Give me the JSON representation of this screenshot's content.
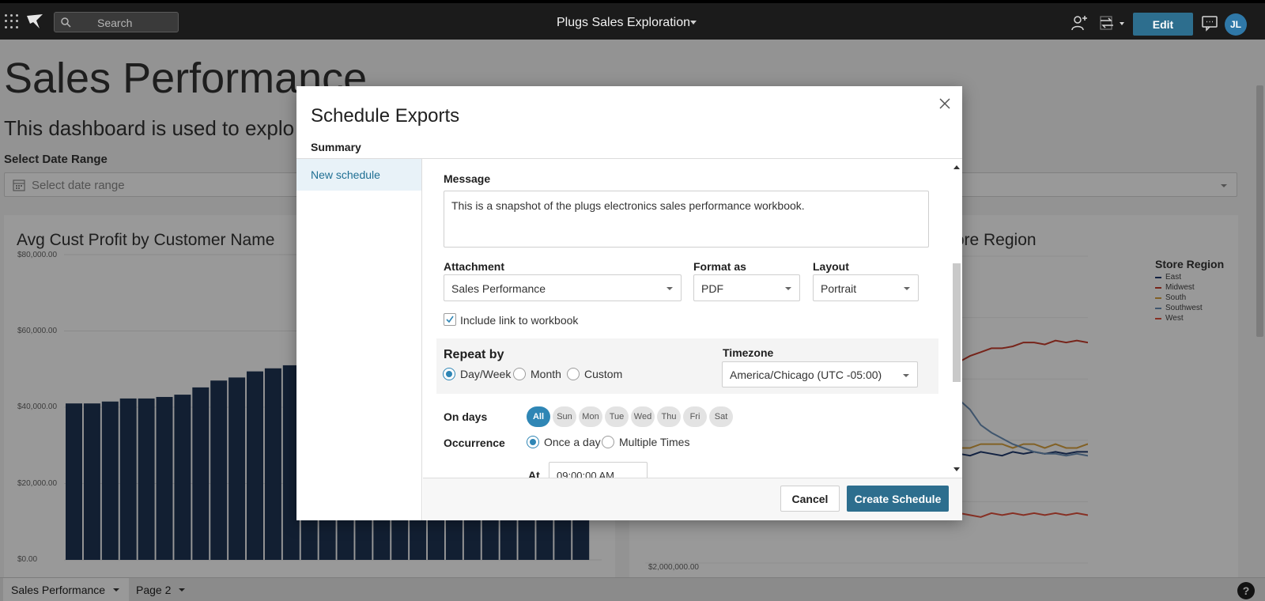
{
  "topbar": {
    "search_placeholder": "Search",
    "workbook_title": "Plugs Sales Exploration",
    "edit_label": "Edit",
    "avatar_initials": "JL"
  },
  "dashboard": {
    "title": "Sales Performance",
    "subtitle": "This dashboard is used to explo",
    "date_range_label": "Select Date Range",
    "date_range_placeholder": "Select date range",
    "left_chart": {
      "title": "Avg Cust Profit by Customer Name",
      "yticks": [
        "$80,000.00",
        "$60,000.00",
        "$40,000.00",
        "$20,000.00",
        "$0.00"
      ]
    },
    "right_chart": {
      "title": "tore Region",
      "ytick_bottom": "$2,000,000.00",
      "legend_title": "Store Region",
      "legend": [
        {
          "name": "East",
          "color": "#1f3a6e"
        },
        {
          "name": "Midwest",
          "color": "#c63c2c"
        },
        {
          "name": "South",
          "color": "#d9a23e"
        },
        {
          "name": "Southwest",
          "color": "#6b8fb8"
        },
        {
          "name": "West",
          "color": "#e2503c"
        }
      ]
    }
  },
  "chart_data": [
    {
      "type": "bar",
      "title": "Avg Cust Profit by Customer Name",
      "ylim": [
        0,
        80000
      ],
      "values": [
        41000,
        41000,
        41500,
        42300,
        42300,
        42700,
        43300,
        45200,
        47000,
        47800,
        49400,
        50200,
        51000,
        51000,
        51000,
        51000,
        51000,
        51000,
        51000,
        51000,
        51000,
        51000,
        51000,
        51000,
        51000,
        51000,
        51000,
        51000,
        51000
      ]
    },
    {
      "type": "line",
      "series": [
        {
          "name": "East",
          "values": [
            0.55,
            0.56,
            0.57,
            0.56,
            0.58,
            0.57,
            0.56,
            0.58,
            0.57,
            0.58,
            0.57,
            0.56,
            0.58,
            0.57,
            0.56,
            0.58,
            0.57,
            0.56,
            0.58,
            0.57,
            0.56,
            0.58,
            0.57,
            0.56,
            0.58,
            0.57,
            0.56,
            0.58,
            0.57,
            0.56,
            0.58,
            0.57,
            0.58,
            0.57,
            0.58,
            0.57,
            0.58,
            0.58,
            0.57,
            0.56,
            0.0
          ]
        },
        {
          "name": "Midwest",
          "values": [
            0.75,
            0.76,
            0.76,
            0.77,
            0.76,
            0.76,
            0.77,
            0.76,
            0.77,
            0.76,
            0.76,
            0.77,
            0.76,
            0.76,
            0.77,
            0.76,
            0.78,
            0.78,
            0.8,
            0.82,
            0.84,
            0.86,
            0.9,
            0.95,
            1.0,
            1.05,
            1.08,
            1.1,
            1.12,
            1.12,
            1.13,
            1.15,
            1.15,
            1.14,
            1.16,
            1.15,
            1.16,
            1.15,
            1.16,
            1.17,
            0.0
          ]
        },
        {
          "name": "South",
          "values": [
            0.75,
            0.76,
            0.76,
            0.77,
            0.76,
            0.76,
            0.77,
            0.76,
            0.77,
            0.76,
            0.76,
            0.77,
            0.76,
            0.76,
            0.77,
            0.76,
            0.68,
            0.66,
            0.64,
            0.64,
            0.62,
            0.62,
            0.6,
            0.6,
            0.62,
            0.6,
            0.6,
            0.62,
            0.62,
            0.62,
            0.6,
            0.62,
            0.62,
            0.6,
            0.62,
            0.6,
            0.6,
            0.62,
            0.6,
            0.6,
            0.0
          ]
        },
        {
          "name": "Southwest",
          "values": [
            1.55,
            1.25,
            1.18,
            1.16,
            1.16,
            1.15,
            1.16,
            1.15,
            1.16,
            1.15,
            1.15,
            1.14,
            1.14,
            1.13,
            1.13,
            1.12,
            1.12,
            1.1,
            1.1,
            1.08,
            1.06,
            1.04,
            1.0,
            0.95,
            0.9,
            0.85,
            0.8,
            0.72,
            0.68,
            0.65,
            0.62,
            0.6,
            0.58,
            0.57,
            0.57,
            0.56,
            0.57,
            0.56,
            0.56,
            0.55,
            0.0
          ]
        },
        {
          "name": "West",
          "values": [
            0.32,
            0.26,
            0.27,
            0.25,
            0.24,
            0.25,
            0.24,
            0.26,
            0.25,
            0.24,
            0.26,
            0.25,
            0.24,
            0.26,
            0.25,
            0.24,
            0.26,
            0.25,
            0.24,
            0.26,
            0.25,
            0.24,
            0.26,
            0.25,
            0.24,
            0.26,
            0.25,
            0.24,
            0.26,
            0.25,
            0.26,
            0.25,
            0.26,
            0.25,
            0.26,
            0.25,
            0.26,
            0.25,
            0.26,
            0.25,
            0.0
          ]
        }
      ]
    }
  ],
  "modal": {
    "title": "Schedule Exports",
    "summary_label": "Summary",
    "side_item": "New schedule",
    "message_label": "Message",
    "message_value": "This is a snapshot of the plugs electronics sales performance workbook.",
    "attachment_label": "Attachment",
    "attachment_value": "Sales Performance",
    "format_label": "Format as",
    "format_value": "PDF",
    "layout_label": "Layout",
    "layout_value": "Portrait",
    "include_link_label": "Include link to workbook",
    "repeat_label": "Repeat by",
    "repeat_options": [
      "Day/Week",
      "Month",
      "Custom"
    ],
    "timezone_label": "Timezone",
    "timezone_value": "America/Chicago (UTC -05:00)",
    "on_days_label": "On days",
    "days": [
      "All",
      "Sun",
      "Mon",
      "Tue",
      "Wed",
      "Thu",
      "Fri",
      "Sat"
    ],
    "occurrence_label": "Occurrence",
    "occurrence_options": [
      "Once a day",
      "Multiple Times"
    ],
    "at_label": "At",
    "time_value": "09:00:00 AM",
    "cancel_label": "Cancel",
    "create_label": "Create Schedule"
  },
  "pages": {
    "tabs": [
      "Sales Performance",
      "Page 2"
    ],
    "help_label": "?"
  }
}
